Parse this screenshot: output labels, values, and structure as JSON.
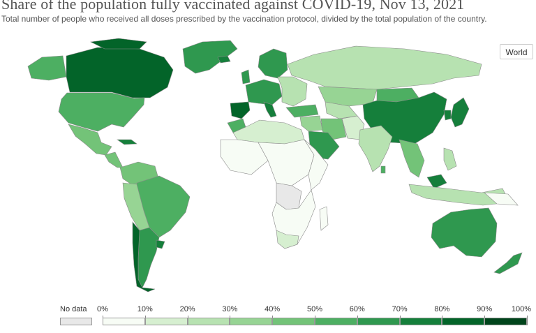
{
  "header": {
    "title": "Share of the population fully vaccinated against COVID-19, Nov 13, 2021",
    "subtitle": "Total number of people who received all doses prescribed by the vaccination protocol, divided by the total population of the country."
  },
  "region_select": {
    "value": "World"
  },
  "legend": {
    "no_data_label": "No data",
    "no_data_color": "#e8e8e8",
    "ticks": [
      "0%",
      "10%",
      "20%",
      "30%",
      "40%",
      "50%",
      "60%",
      "70%",
      "80%",
      "90%",
      "100%"
    ],
    "bins": [
      {
        "range": "0-10%",
        "color": "#f7fcf5"
      },
      {
        "range": "10-20%",
        "color": "#d6efd0"
      },
      {
        "range": "20-30%",
        "color": "#b7e2b1"
      },
      {
        "range": "30-40%",
        "color": "#97d494"
      },
      {
        "range": "40-50%",
        "color": "#73c378"
      },
      {
        "range": "50-60%",
        "color": "#4daf62"
      },
      {
        "range": "60-70%",
        "color": "#2f984f"
      },
      {
        "range": "70-80%",
        "color": "#157f3b"
      },
      {
        "range": "80-90%",
        "color": "#036429"
      },
      {
        "range": "90-100%",
        "color": "#00441b"
      }
    ]
  },
  "regions": [
    {
      "name": "Canada",
      "bin": 8
    },
    {
      "name": "United States",
      "bin": 5
    },
    {
      "name": "Mexico",
      "bin": 4
    },
    {
      "name": "Cuba",
      "bin": 7
    },
    {
      "name": "Brazil",
      "bin": 5
    },
    {
      "name": "Chile",
      "bin": 8
    },
    {
      "name": "Argentina",
      "bin": 6
    },
    {
      "name": "Uruguay",
      "bin": 7
    },
    {
      "name": "Greenland",
      "bin": 6
    },
    {
      "name": "Spain",
      "bin": 8
    },
    {
      "name": "Russia",
      "bin": 2
    },
    {
      "name": "China",
      "bin": 7
    },
    {
      "name": "Japan",
      "bin": 7
    },
    {
      "name": "India",
      "bin": 2
    },
    {
      "name": "Saudi Arabia",
      "bin": 6
    },
    {
      "name": "Iran",
      "bin": 4
    },
    {
      "name": "Kazakhstan",
      "bin": 3
    },
    {
      "name": "Australia",
      "bin": 6
    },
    {
      "name": "New Zealand",
      "bin": 6
    },
    {
      "name": "Democratic Republic of Congo",
      "bin": -1
    },
    {
      "name": "Morocco",
      "bin": 5
    },
    {
      "name": "South Africa",
      "bin": 1
    }
  ]
}
